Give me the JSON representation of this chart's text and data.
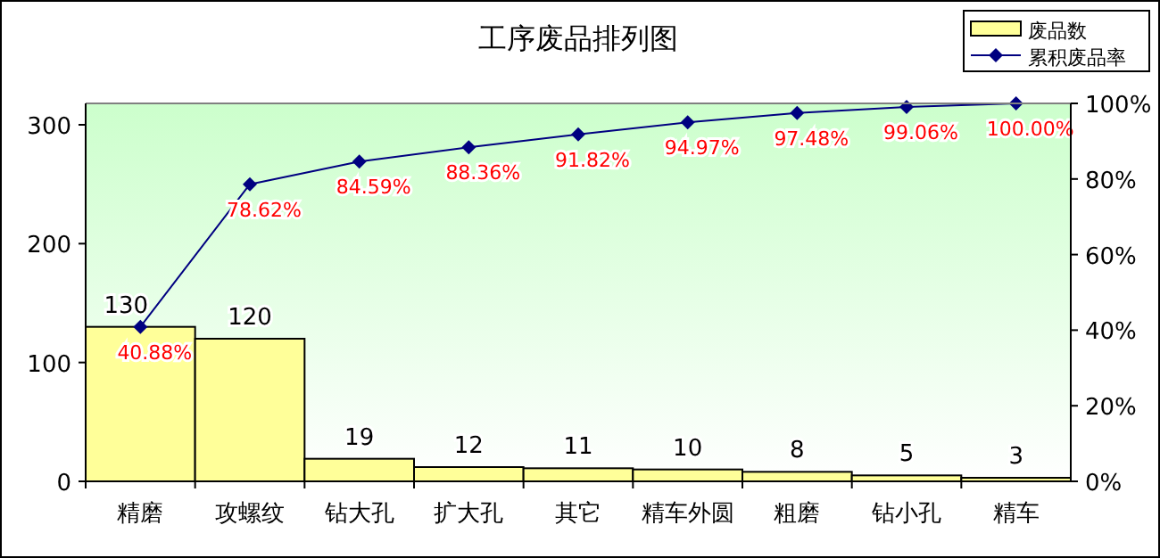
{
  "chart_data": {
    "type": "bar",
    "title": "工序废品排列图",
    "categories": [
      "精磨",
      "攻螺纹",
      "钻大孔",
      "扩大孔",
      "其它",
      "精车外圆",
      "粗磨",
      "钻小孔",
      "精车"
    ],
    "series": [
      {
        "name": "废品数",
        "color": "#ffff99",
        "values": [
          130,
          120,
          19,
          12,
          11,
          10,
          8,
          5,
          3
        ],
        "value_labels": [
          "130",
          "120",
          "19",
          "12",
          "11",
          "10",
          "8",
          "5",
          "3"
        ]
      },
      {
        "name": "累积废品率",
        "type": "line",
        "axis": "y2",
        "color": "#000080",
        "values": [
          40.88,
          78.62,
          84.59,
          88.36,
          91.82,
          94.97,
          97.48,
          99.06,
          100.0
        ],
        "value_labels": [
          "40.88%",
          "78.62%",
          "84.59%",
          "88.36%",
          "91.82%",
          "94.97%",
          "97.48%",
          "99.06%",
          "100.00%"
        ]
      }
    ],
    "ylim": [
      0,
      318
    ],
    "yticks": [
      0,
      100,
      200,
      300
    ],
    "y2lim": [
      0,
      100
    ],
    "y2ticks": [
      {
        "value": 0,
        "label": "0%"
      },
      {
        "value": 20,
        "label": "20%"
      },
      {
        "value": 40,
        "label": "40%"
      },
      {
        "value": 60,
        "label": "60%"
      },
      {
        "value": 80,
        "label": "80%"
      },
      {
        "value": 100,
        "label": "100%"
      }
    ],
    "grid": false,
    "legend": "top right",
    "marker": "diamond"
  }
}
